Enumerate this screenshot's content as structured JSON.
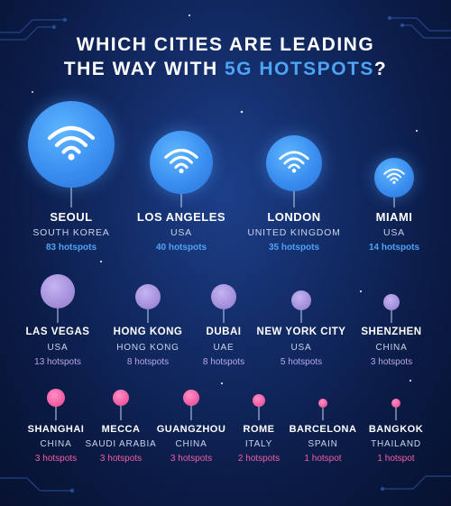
{
  "title": {
    "line1": "WHICH CITIES ARE LEADING",
    "line2_prefix": "THE WAY WITH",
    "line2_accent": "5G HOTSPOTS",
    "line2_suffix": "?"
  },
  "cities": [
    {
      "name": "SEOUL",
      "country": "SOUTH KOREA",
      "hotspots": "83 hotspots",
      "tier": "blue"
    },
    {
      "name": "LOS ANGELES",
      "country": "USA",
      "hotspots": "40 hotspots",
      "tier": "blue"
    },
    {
      "name": "LONDON",
      "country": "UNITED KINGDOM",
      "hotspots": "35 hotspots",
      "tier": "blue"
    },
    {
      "name": "MIAMI",
      "country": "USA",
      "hotspots": "14 hotspots",
      "tier": "blue"
    },
    {
      "name": "LAS VEGAS",
      "country": "USA",
      "hotspots": "13 hotspots",
      "tier": "purple"
    },
    {
      "name": "HONG KONG",
      "country": "HONG KONG",
      "hotspots": "8 hotspots",
      "tier": "purple"
    },
    {
      "name": "DUBAI",
      "country": "UAE",
      "hotspots": "8 hotspots",
      "tier": "purple"
    },
    {
      "name": "NEW YORK CITY",
      "country": "USA",
      "hotspots": "5 hotspots",
      "tier": "purple"
    },
    {
      "name": "SHENZHEN",
      "country": "CHINA",
      "hotspots": "3 hotspots",
      "tier": "purple"
    },
    {
      "name": "SHANGHAI",
      "country": "CHINA",
      "hotspots": "3 hotspots",
      "tier": "pink"
    },
    {
      "name": "MECCA",
      "country": "SAUDI ARABIA",
      "hotspots": "3 hotspots",
      "tier": "pink"
    },
    {
      "name": "GUANGZHOU",
      "country": "CHINA",
      "hotspots": "3 hotspots",
      "tier": "pink"
    },
    {
      "name": "ROME",
      "country": "ITALY",
      "hotspots": "2 hotspots",
      "tier": "pink"
    },
    {
      "name": "BARCELONA",
      "country": "SPAIN",
      "hotspots": "1 hotspot",
      "tier": "pink"
    },
    {
      "name": "BANGKOK",
      "country": "THAILAND",
      "hotspots": "1 hotspot",
      "tier": "pink"
    }
  ],
  "colors": {
    "background": "#0a1a44",
    "accent": "#4ea3f5",
    "tier_blue": "#3a8ef0",
    "tier_purple": "#a590dc",
    "tier_pink": "#f25fa5",
    "country_text": "#c9d3ea"
  },
  "icons": {
    "wifi": "wifi-icon"
  }
}
